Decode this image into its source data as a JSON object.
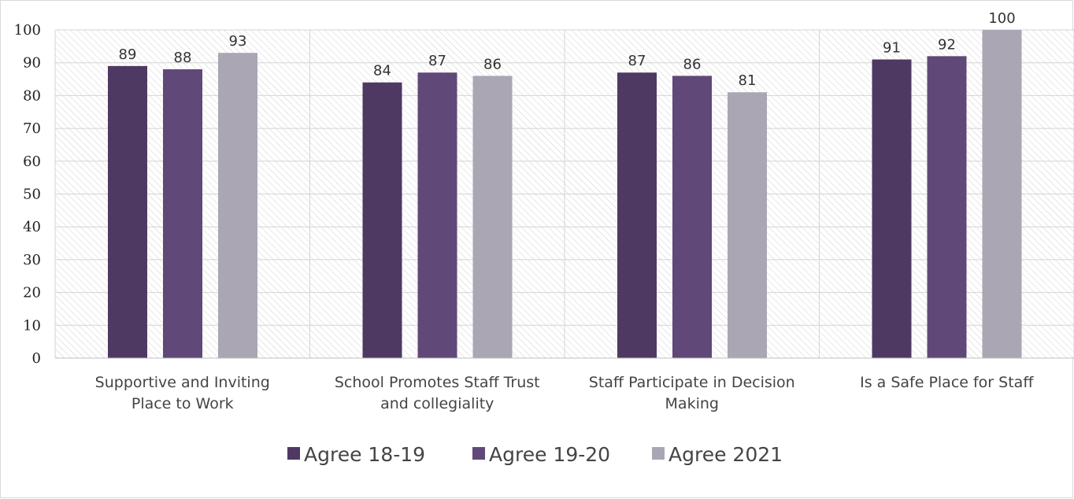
{
  "chart_data": {
    "type": "bar",
    "title": "",
    "xlabel": "",
    "ylabel": "",
    "ylim": [
      0,
      100
    ],
    "yticks": [
      0,
      10,
      20,
      30,
      40,
      50,
      60,
      70,
      80,
      90,
      100
    ],
    "grid": "horizontal",
    "legend_position": "bottom",
    "categories": [
      [
        "Supportive and Inviting",
        "Place to Work"
      ],
      [
        "School Promotes Staff Trust",
        "and collegiality"
      ],
      [
        "Staff Participate in Decision",
        "Making"
      ],
      [
        "Is a Safe Place for Staff"
      ]
    ],
    "series": [
      {
        "name": "Agree 18-19",
        "color": "#4e3963",
        "values": [
          89,
          84,
          87,
          91
        ]
      },
      {
        "name": "Agree 19-20",
        "color": "#604878",
        "values": [
          88,
          87,
          86,
          92
        ]
      },
      {
        "name": "Agree 2021",
        "color": "#aba6b4",
        "values": [
          93,
          86,
          81,
          100
        ]
      }
    ],
    "plot_background": "diagonal-hatch",
    "hatch_color": "#cfcfcf",
    "grid_color": "#d4d4d4",
    "axis_color": "#bfbfbf"
  }
}
